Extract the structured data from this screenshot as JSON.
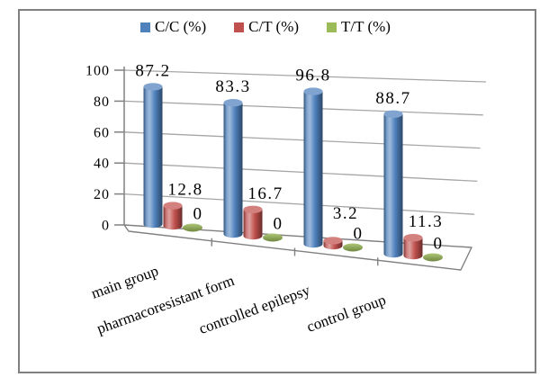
{
  "chart": {
    "legend": [
      {
        "label": "C/C (%)",
        "color": "#4F81BD"
      },
      {
        "label": "C/T (%)",
        "color": "#C0504D"
      },
      {
        "label": "T/T (%)",
        "color": "#9BBB59"
      }
    ],
    "border_color": "#808080",
    "gridline_color": "#A6A6A6"
  },
  "chart_data": {
    "type": "bar",
    "subtype": "3d-cylinder",
    "categories": [
      "main  group",
      "pharmacoresistant form",
      "controlled epilepsy",
      "control group"
    ],
    "series": [
      {
        "name": "C/C (%)",
        "color": "#4F81BD",
        "values": [
          87.2,
          83.3,
          96.8,
          88.7
        ]
      },
      {
        "name": "C/T (%)",
        "color": "#C0504D",
        "values": [
          12.8,
          16.7,
          3.2,
          11.3
        ]
      },
      {
        "name": "T/T (%)",
        "color": "#9BBB59",
        "values": [
          0,
          0,
          0,
          0
        ]
      }
    ],
    "title": "",
    "xlabel": "",
    "ylabel": "",
    "ylim": [
      0,
      100
    ],
    "yticks": [
      0,
      20,
      40,
      60,
      80,
      100
    ],
    "grid": true,
    "legend_position": "top",
    "data_labels": true
  }
}
